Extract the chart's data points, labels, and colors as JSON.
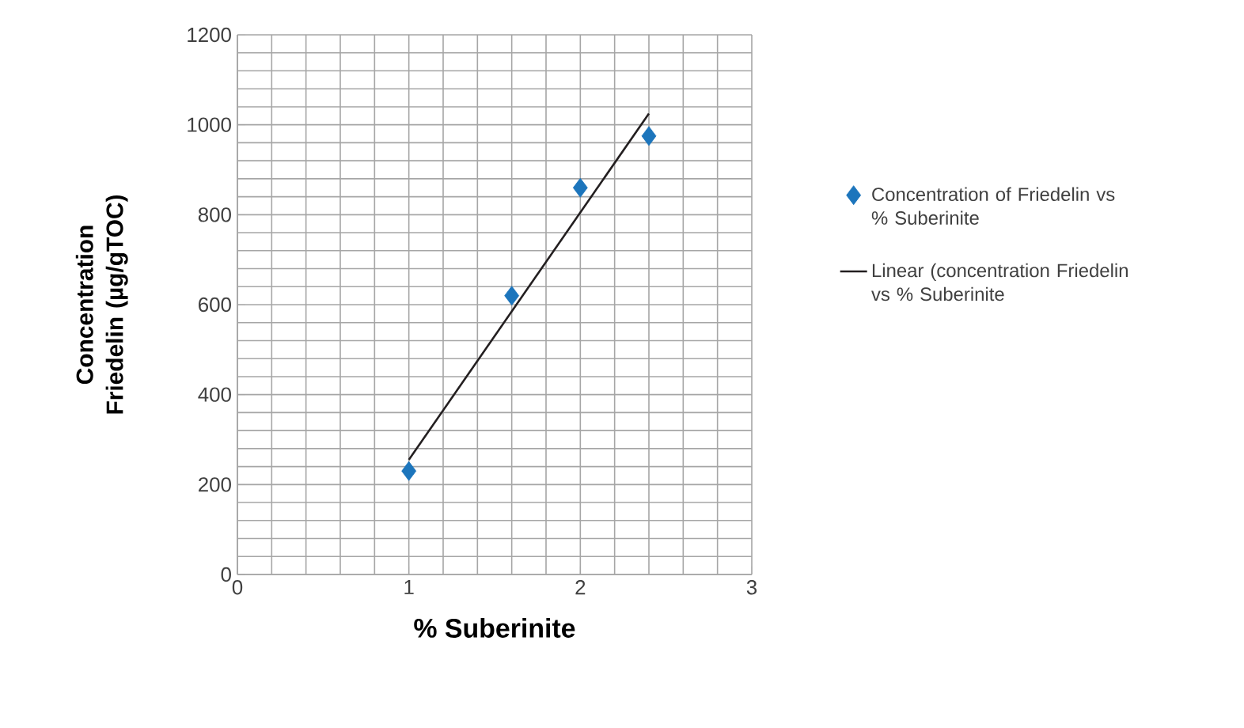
{
  "chart_data": {
    "type": "scatter",
    "xlabel": "% Suberinite",
    "ylabel": "Concentration Friedelin (µg/gTOC)",
    "series": [
      {
        "name": "Concentration of Friedelin vs % Suberinite",
        "color": "#1c75bc",
        "marker": "diamond",
        "x": [
          1,
          1.6,
          2,
          2.4
        ],
        "values": [
          230,
          620,
          860,
          975
        ]
      },
      {
        "name": "Linear (concentration Friedelin vs % Suberinite",
        "type": "line",
        "color": "#231f20",
        "marker": "none",
        "line_style": "solid",
        "x": [
          1,
          2.4
        ],
        "values": [
          255,
          1025
        ]
      }
    ],
    "xlim": [
      0,
      3
    ],
    "xticks": [
      0,
      1,
      2,
      3
    ],
    "ylim": [
      0,
      1200
    ],
    "yticks": [
      0,
      200,
      400,
      600,
      800,
      1000,
      1200
    ],
    "grid": true,
    "legend": "right"
  }
}
